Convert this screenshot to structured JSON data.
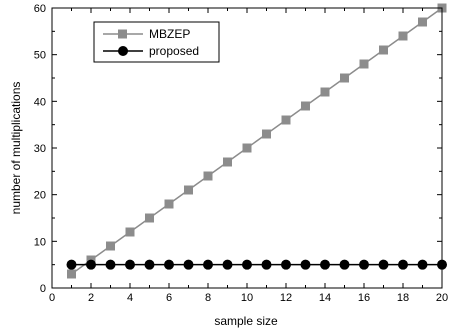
{
  "chart_data": {
    "type": "line",
    "title": "",
    "xlabel": "sample size",
    "ylabel": "number of multiplications",
    "xlim": [
      0,
      20
    ],
    "ylim": [
      0,
      60
    ],
    "x_ticks": [
      0,
      2,
      4,
      6,
      8,
      10,
      12,
      14,
      16,
      18,
      20
    ],
    "y_ticks": [
      0,
      10,
      20,
      30,
      40,
      50,
      60
    ],
    "grid": false,
    "legend": "top-left",
    "x": [
      1,
      2,
      3,
      4,
      5,
      6,
      7,
      8,
      9,
      10,
      11,
      12,
      13,
      14,
      15,
      16,
      17,
      18,
      19,
      20
    ],
    "series": [
      {
        "name": "MBZEP",
        "color": "#8c8c8c",
        "marker": "square",
        "values": [
          3,
          6,
          9,
          12,
          15,
          18,
          21,
          24,
          27,
          30,
          33,
          36,
          39,
          42,
          45,
          48,
          51,
          54,
          57,
          60
        ]
      },
      {
        "name": "proposed",
        "color": "#000000",
        "marker": "circle",
        "values": [
          5,
          5,
          5,
          5,
          5,
          5,
          5,
          5,
          5,
          5,
          5,
          5,
          5,
          5,
          5,
          5,
          5,
          5,
          5,
          5
        ]
      }
    ]
  }
}
